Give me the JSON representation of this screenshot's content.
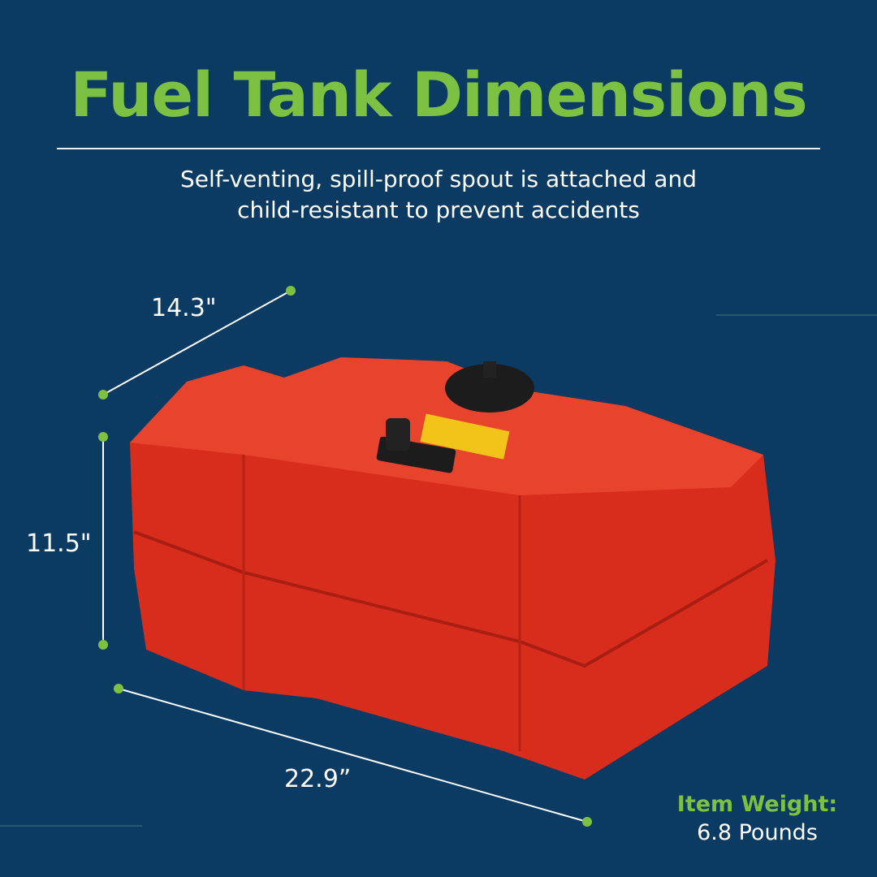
{
  "title": "Fuel Tank Dimensions",
  "subtitle_line1": "Self-venting, spill-proof spout is attached and",
  "subtitle_line2": "child-resistant to prevent accidents",
  "dimensions": {
    "depth": "14.3\"",
    "height": "11.5\"",
    "length": "22.9”"
  },
  "weight": {
    "label": "Item Weight:",
    "value": "6.8 Pounds"
  },
  "colors": {
    "background": "#0b3a62",
    "accent": "#7dc142",
    "tank": "#e0301e"
  },
  "product_image": "red-portable-fuel-tank"
}
